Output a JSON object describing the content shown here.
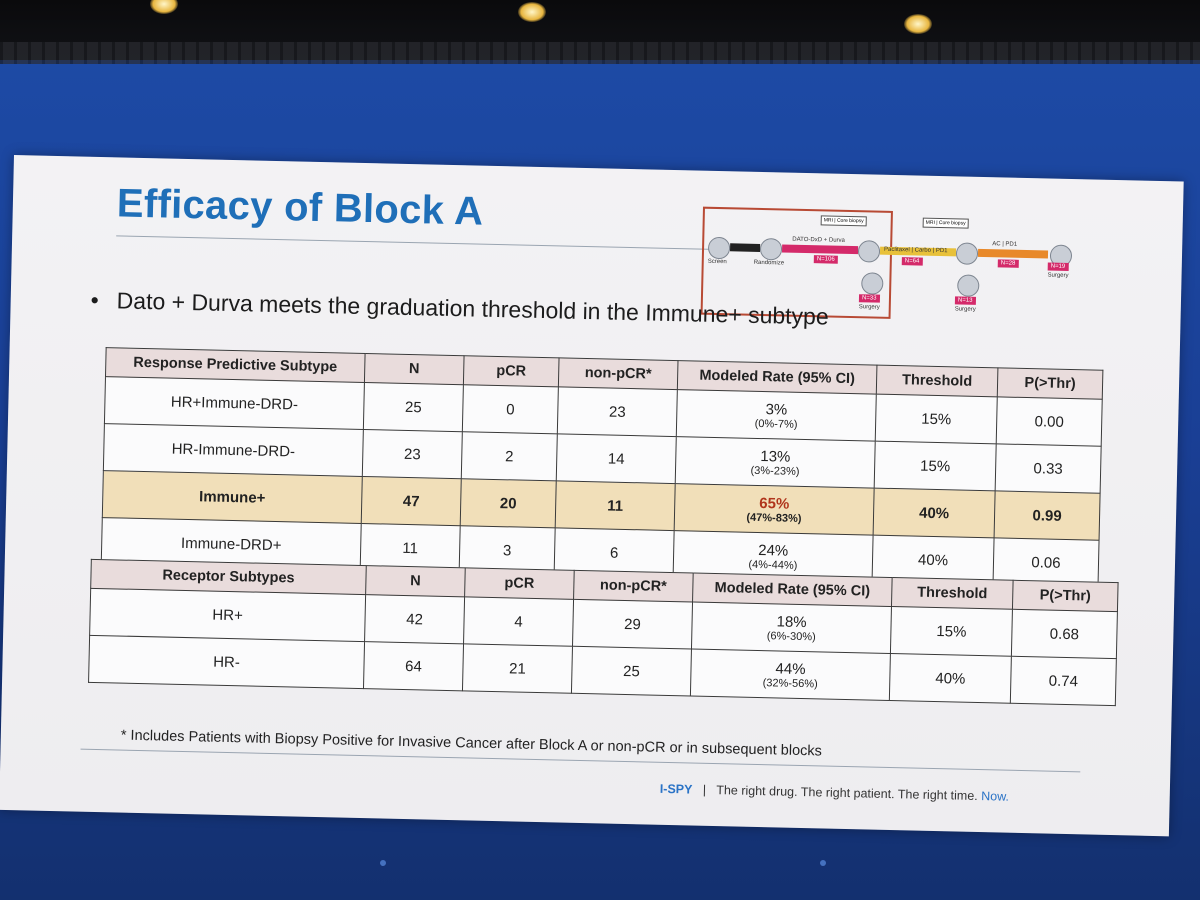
{
  "slide": {
    "title": "Efficacy of Block A",
    "bullet": "Dato + Durva meets the graduation threshold in the Immune+ subtype"
  },
  "schema": {
    "screen": "Screen",
    "randomize": "Randomize",
    "arm": "DATO-DxD + Durva",
    "arm_n": "N=106",
    "surgery": "Surgery",
    "n_surgery_1": "N=33",
    "paclitaxel": "Paclitaxel | Carbo | PD1",
    "paclitaxel_n": "N=64",
    "ac": "AC | PD1",
    "ac_n": "N=28",
    "n_surgery_2": "N=19",
    "n_surgery_3": "N=13",
    "evaluation_1": "MRI | Core biopsy",
    "evaluation_2": "MRI | Core biopsy"
  },
  "table1": {
    "headers": [
      "Response Predictive Subtype",
      "N",
      "pCR",
      "non-pCR*",
      "Modeled Rate (95% CI)",
      "Threshold",
      "P(>Thr)"
    ],
    "rows": [
      {
        "subtype": "HR+Immune-DRD-",
        "n": "25",
        "pcr": "0",
        "nonpcr": "23",
        "rate": "3%",
        "ci": "(0%-7%)",
        "threshold": "15%",
        "p": "0.00"
      },
      {
        "subtype": "HR-Immune-DRD-",
        "n": "23",
        "pcr": "2",
        "nonpcr": "14",
        "rate": "13%",
        "ci": "(3%-23%)",
        "threshold": "15%",
        "p": "0.33"
      },
      {
        "subtype": "Immune+",
        "n": "47",
        "pcr": "20",
        "nonpcr": "11",
        "rate": "65%",
        "ci": "(47%-83%)",
        "threshold": "40%",
        "p": "0.99"
      },
      {
        "subtype": "Immune-DRD+",
        "n": "11",
        "pcr": "3",
        "nonpcr": "6",
        "rate": "24%",
        "ci": "(4%-44%)",
        "threshold": "40%",
        "p": "0.06"
      }
    ]
  },
  "table2": {
    "headers": [
      "Receptor Subtypes",
      "N",
      "pCR",
      "non-pCR*",
      "Modeled Rate (95% CI)",
      "Threshold",
      "P(>Thr)"
    ],
    "rows": [
      {
        "subtype": "HR+",
        "n": "42",
        "pcr": "4",
        "nonpcr": "29",
        "rate": "18%",
        "ci": "(6%-30%)",
        "threshold": "15%",
        "p": "0.68"
      },
      {
        "subtype": "HR-",
        "n": "64",
        "pcr": "21",
        "nonpcr": "25",
        "rate": "44%",
        "ci": "(32%-56%)",
        "threshold": "40%",
        "p": "0.74"
      }
    ]
  },
  "footnote": "* Includes Patients with Biopsy Positive for Invasive Cancer after Block A or non-pCR or in subsequent blocks",
  "footer": {
    "brand": "I-SPY",
    "separator": "|",
    "tagline": "The right drug. The right patient. The right time.",
    "now": "Now."
  },
  "colors": {
    "title": "#1f6fb8",
    "highlight_row": "#f1dfb9",
    "header_row": "#e9dcdc",
    "schema_border": "#b84a34",
    "arrow_pink": "#d42a6a",
    "arrow_yellow": "#e8c13a",
    "arrow_orange": "#e8892a"
  }
}
